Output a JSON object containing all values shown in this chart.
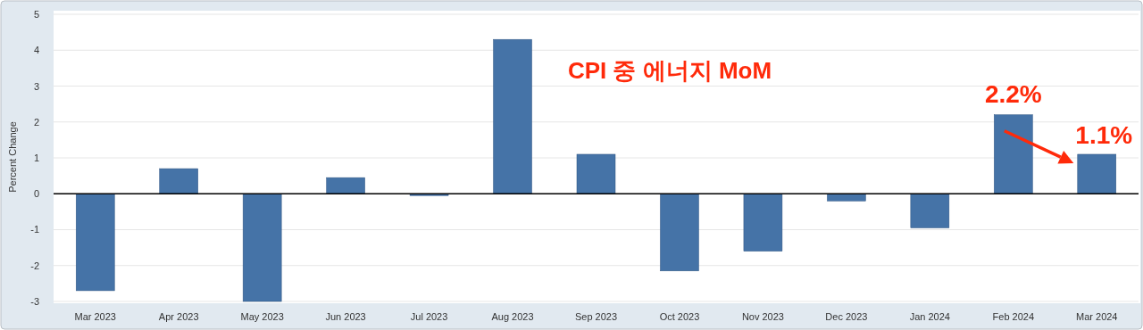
{
  "chart_data": {
    "type": "bar",
    "title": "CPI 중 에너지 MoM",
    "ylabel": "Percent Change",
    "categories": [
      "Mar 2023",
      "Apr 2023",
      "May 2023",
      "Jun 2023",
      "Jul 2023",
      "Aug 2023",
      "Sep 2023",
      "Oct 2023",
      "Nov 2023",
      "Dec 2023",
      "Jan 2024",
      "Feb 2024",
      "Mar 2024"
    ],
    "values": [
      -2.7,
      0.7,
      -3.0,
      0.45,
      -0.05,
      4.3,
      1.1,
      -2.15,
      -1.6,
      -0.2,
      -0.95,
      2.2,
      1.1
    ],
    "color": "#4573a7",
    "ylim": [
      -3.05,
      5.1
    ],
    "yticks": [
      -3,
      -2,
      -1,
      0,
      1,
      2,
      3,
      4,
      5
    ],
    "grid": "y",
    "annotations": [
      {
        "text": "2.2%",
        "x": "Feb 2024",
        "y": 2.2
      },
      {
        "text": "1.1%",
        "x": "Mar 2024",
        "y": 1.1
      }
    ]
  }
}
